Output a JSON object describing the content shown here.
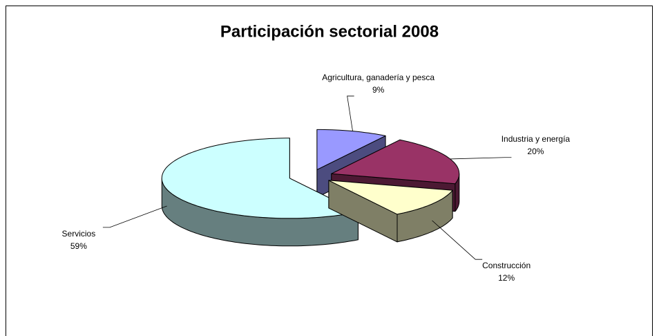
{
  "chart_data": {
    "type": "pie3d",
    "title": "Participación sectorial 2008",
    "categories": [
      "Agricultura, ganadería y pesca",
      "Industria y energía",
      "Construcción",
      "Servicios"
    ],
    "values": [
      9,
      20,
      12,
      59
    ],
    "value_labels": [
      "9%",
      "20%",
      "12%",
      "59%"
    ],
    "colors": [
      "#9999ff",
      "#993366",
      "#ffffcc",
      "#ccffff"
    ]
  }
}
